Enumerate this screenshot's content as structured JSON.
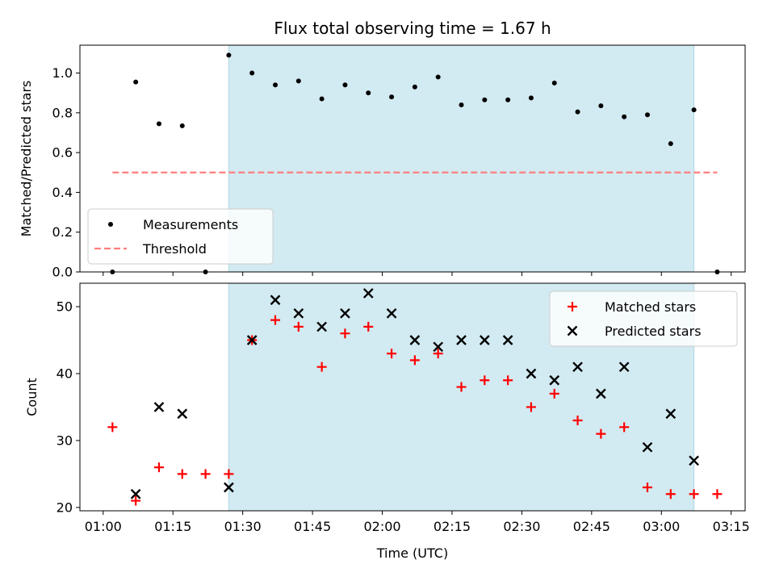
{
  "chart_data": [
    {
      "type": "scatter",
      "title": "Flux total observing time = 1.67 h",
      "xlabel": "",
      "ylabel": "Matched/Predicted stars",
      "ylim": [
        0,
        1.14
      ],
      "yticks": [
        "0.0",
        "0.2",
        "0.4",
        "0.6",
        "0.8",
        "1.0"
      ],
      "x_axis": "time",
      "xlim": [
        "00:55",
        "03:18"
      ],
      "xticks": [
        "01:00",
        "01:15",
        "01:30",
        "01:45",
        "02:00",
        "02:15",
        "02:30",
        "02:45",
        "03:00",
        "03:15"
      ],
      "x_tick_labels_visible": false,
      "shaded_span": [
        "01:27",
        "03:07"
      ],
      "shade_color": "#add8e6",
      "legend_position": "lower-left",
      "series": [
        {
          "name": "Measurements",
          "marker": "dot",
          "color": "#000000",
          "x": [
            "01:02",
            "01:07",
            "01:12",
            "01:17",
            "01:22",
            "01:27",
            "01:32",
            "01:37",
            "01:42",
            "01:47",
            "01:52",
            "01:57",
            "02:02",
            "02:07",
            "02:12",
            "02:17",
            "02:22",
            "02:27",
            "02:32",
            "02:37",
            "02:42",
            "02:47",
            "02:52",
            "02:57",
            "03:02",
            "03:07",
            "03:12"
          ],
          "values": [
            0.0,
            0.955,
            0.745,
            0.735,
            0.0,
            1.09,
            1.0,
            0.94,
            0.96,
            0.87,
            0.94,
            0.9,
            0.88,
            0.93,
            0.98,
            0.84,
            0.865,
            0.865,
            0.875,
            0.95,
            0.805,
            0.835,
            0.78,
            0.79,
            0.645,
            0.815,
            0.0
          ]
        },
        {
          "name": "Threshold",
          "marker": "dashed-line",
          "color": "#ff7f7f",
          "x": [
            "01:02",
            "03:12"
          ],
          "values": [
            0.5,
            0.5
          ]
        }
      ]
    },
    {
      "type": "scatter",
      "title": "",
      "xlabel": "Time (UTC)",
      "ylabel": "Count",
      "ylim": [
        19.5,
        53.5
      ],
      "yticks": [
        "20",
        "30",
        "40",
        "50"
      ],
      "x_axis": "time",
      "xlim": [
        "00:55",
        "03:18"
      ],
      "xticks": [
        "01:00",
        "01:15",
        "01:30",
        "01:45",
        "02:00",
        "02:15",
        "02:30",
        "02:45",
        "03:00",
        "03:15"
      ],
      "x_tick_labels_visible": true,
      "shaded_span": [
        "01:27",
        "03:07"
      ],
      "shade_color": "#add8e6",
      "legend_position": "upper-right",
      "series": [
        {
          "name": "Matched stars",
          "marker": "plus",
          "color": "#ff0000",
          "x": [
            "01:02",
            "01:07",
            "01:12",
            "01:17",
            "01:22",
            "01:27",
            "01:32",
            "01:37",
            "01:42",
            "01:47",
            "01:52",
            "01:57",
            "02:02",
            "02:07",
            "02:12",
            "02:17",
            "02:22",
            "02:27",
            "02:32",
            "02:37",
            "02:42",
            "02:47",
            "02:52",
            "02:57",
            "03:02",
            "03:07",
            "03:12"
          ],
          "values": [
            32,
            21,
            26,
            25,
            25,
            25,
            45,
            48,
            47,
            41,
            46,
            47,
            43,
            42,
            43,
            38,
            39,
            39,
            35,
            37,
            33,
            31,
            32,
            23,
            22,
            22,
            22
          ]
        },
        {
          "name": "Predicted stars",
          "marker": "x",
          "color": "#000000",
          "x": [
            "01:07",
            "01:12",
            "01:17",
            "01:27",
            "01:32",
            "01:37",
            "01:42",
            "01:47",
            "01:52",
            "01:57",
            "02:02",
            "02:07",
            "02:12",
            "02:17",
            "02:22",
            "02:27",
            "02:32",
            "02:37",
            "02:42",
            "02:47",
            "02:52",
            "02:57",
            "03:02",
            "03:07"
          ],
          "values": [
            22,
            35,
            34,
            23,
            45,
            51,
            49,
            47,
            49,
            52,
            49,
            45,
            44,
            45,
            45,
            45,
            40,
            39,
            41,
            37,
            41,
            29,
            34,
            27
          ]
        }
      ]
    }
  ]
}
